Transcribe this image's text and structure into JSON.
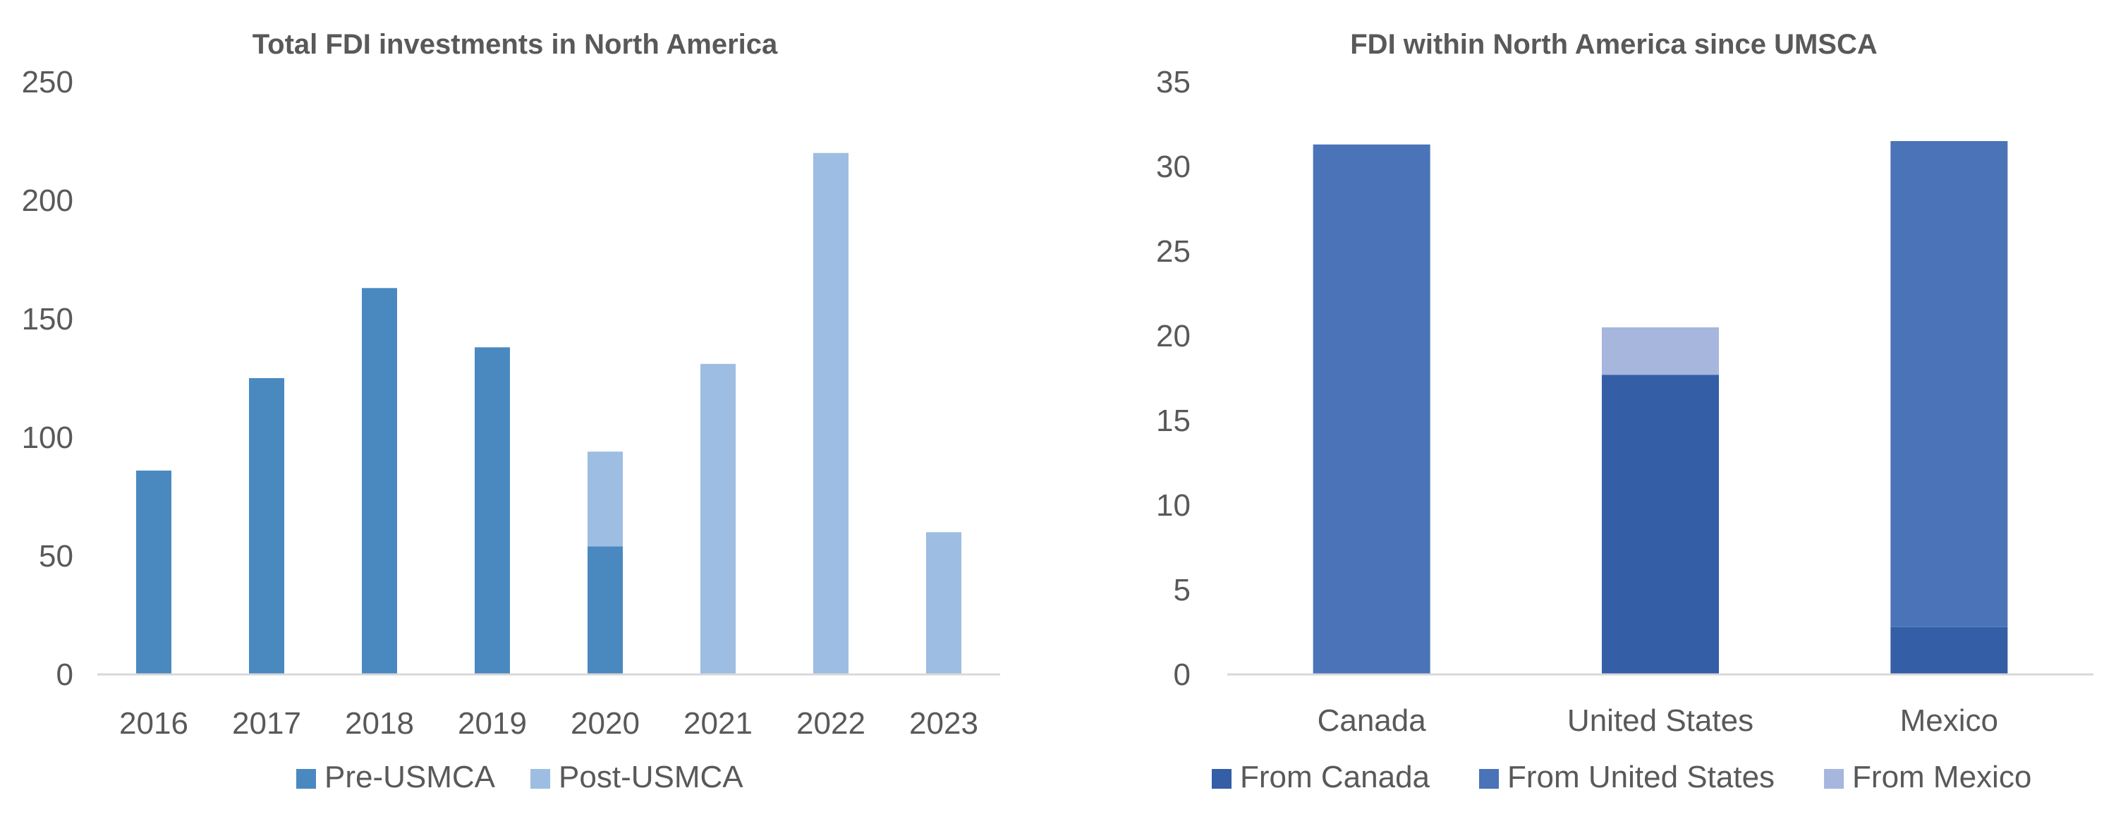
{
  "chart_data": [
    {
      "type": "bar",
      "stacked": true,
      "title": "Total FDI investments in North America",
      "xlabel": "",
      "ylabel": "",
      "ylim": [
        0,
        250
      ],
      "yticks": [
        0,
        50,
        100,
        150,
        200,
        250
      ],
      "grid": false,
      "legend_position": "bottom",
      "categories": [
        "2016",
        "2017",
        "2018",
        "2019",
        "2020",
        "2021",
        "2022",
        "2023"
      ],
      "series": [
        {
          "name": "Pre-USMCA",
          "color": "#4A89C0",
          "values": [
            86,
            125,
            163,
            138,
            54,
            0,
            0,
            0
          ]
        },
        {
          "name": "Post-USMCA",
          "color": "#9DBDE2",
          "values": [
            0,
            0,
            0,
            0,
            40,
            131,
            220,
            60
          ]
        }
      ]
    },
    {
      "type": "bar",
      "stacked": true,
      "title": "FDI within North America since UMSCA",
      "xlabel": "",
      "ylabel": "",
      "ylim": [
        0,
        35
      ],
      "yticks": [
        0,
        5,
        10,
        15,
        20,
        25,
        30,
        35
      ],
      "grid": false,
      "legend_position": "bottom",
      "categories": [
        "Canada",
        "United States",
        "Mexico"
      ],
      "series": [
        {
          "name": "From Canada",
          "color": "#345EA6",
          "values": [
            0,
            17.7,
            2.8
          ]
        },
        {
          "name": "From United States",
          "color": "#4A73B8",
          "values": [
            31.3,
            0,
            28.7
          ]
        },
        {
          "name": "From Mexico",
          "color": "#A6B6DD",
          "values": [
            0,
            2.8,
            0
          ]
        }
      ]
    }
  ]
}
